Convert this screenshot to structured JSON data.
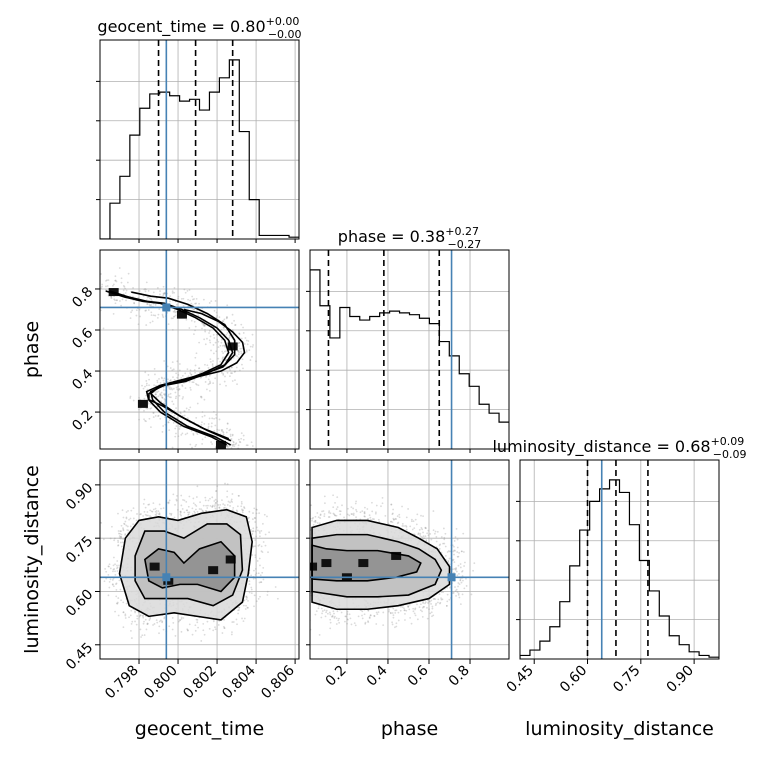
{
  "figure": {
    "type": "corner"
  },
  "truth_color": "#4682b4",
  "chart_data": {
    "type": "corner",
    "parameters": [
      {
        "name": "geocent_time",
        "xlabel": "geocent_time",
        "ylabel": "",
        "title": {
          "base": "geocent_time = 0.80",
          "sup": "+0.00",
          "sub": "−0.00"
        },
        "range": [
          0.796,
          0.8062
        ],
        "ticks": [
          0.798,
          0.8,
          0.802,
          0.804,
          0.806
        ],
        "tick_labels": [
          "0.798",
          "0.800",
          "0.802",
          "0.804",
          "0.806"
        ],
        "quantiles": [
          0.799,
          0.8009,
          0.8028
        ],
        "truth": 0.7994,
        "hist": {
          "edges": [
            0.796,
            0.79651,
            0.79702,
            0.79753,
            0.79804,
            0.79855,
            0.79906,
            0.79957,
            0.80008,
            0.80059,
            0.8011,
            0.80161,
            0.80212,
            0.80263,
            0.80314,
            0.80365,
            0.80416,
            0.80467,
            0.80518,
            0.80569,
            0.8062
          ],
          "counts": [
            0.0,
            0.2,
            0.35,
            0.58,
            0.73,
            0.81,
            0.82,
            0.8,
            0.77,
            0.78,
            0.72,
            0.82,
            0.9,
            1.0,
            0.6,
            0.22,
            0.02,
            0.02,
            0.02,
            0.01
          ]
        }
      },
      {
        "name": "phase",
        "xlabel": "phase",
        "ylabel": "phase",
        "title": {
          "base": "phase = 0.38",
          "sup": "+0.27",
          "sub": "−0.27"
        },
        "range": [
          0.02,
          0.99
        ],
        "ticks": [
          0.2,
          0.4,
          0.6,
          0.8
        ],
        "tick_labels": [
          "0.2",
          "0.4",
          "0.6",
          "0.8"
        ],
        "quantiles": [
          0.11,
          0.38,
          0.65
        ],
        "truth": 0.71,
        "hist": {
          "edges": [
            0.02,
            0.0685,
            0.117,
            0.1655,
            0.214,
            0.2625,
            0.311,
            0.3595,
            0.408,
            0.4565,
            0.505,
            0.5535,
            0.602,
            0.6505,
            0.699,
            0.7475,
            0.796,
            0.8445,
            0.893,
            0.9415,
            0.99
          ],
          "counts": [
            1.0,
            0.8,
            0.62,
            0.79,
            0.74,
            0.72,
            0.74,
            0.76,
            0.77,
            0.76,
            0.75,
            0.73,
            0.7,
            0.6,
            0.52,
            0.42,
            0.35,
            0.25,
            0.2,
            0.15
          ]
        }
      },
      {
        "name": "luminosity_distance",
        "xlabel": "luminosity_distance",
        "ylabel": "luminosity_distance",
        "title": {
          "base": "luminosity_distance = 0.68",
          "sup": "+0.09",
          "sub": "−0.09"
        },
        "range": [
          0.41,
          0.97
        ],
        "ticks": [
          0.45,
          0.6,
          0.75,
          0.9
        ],
        "tick_labels": [
          "0.45",
          "0.60",
          "0.75",
          "0.90"
        ],
        "quantiles": [
          0.6,
          0.68,
          0.77
        ],
        "truth": 0.64,
        "hist": {
          "edges": [
            0.41,
            0.438,
            0.466,
            0.494,
            0.522,
            0.55,
            0.578,
            0.606,
            0.634,
            0.662,
            0.69,
            0.718,
            0.746,
            0.774,
            0.802,
            0.83,
            0.858,
            0.886,
            0.914,
            0.942,
            0.97
          ],
          "counts": [
            0.02,
            0.05,
            0.1,
            0.18,
            0.32,
            0.52,
            0.72,
            0.88,
            0.95,
            1.0,
            0.93,
            0.75,
            0.55,
            0.38,
            0.24,
            0.13,
            0.08,
            0.04,
            0.02,
            0.01
          ]
        }
      }
    ],
    "pairs": [
      {
        "x": "geocent_time",
        "y": "phase",
        "contours": [
          [
            [
              0.7966,
              0.79
            ],
            [
              0.7976,
              0.76
            ],
            [
              0.7985,
              0.74
            ],
            [
              0.7994,
              0.73
            ],
            [
              0.8003,
              0.7
            ],
            [
              0.8012,
              0.66
            ],
            [
              0.8021,
              0.61
            ],
            [
              0.8027,
              0.55
            ],
            [
              0.8029,
              0.49
            ],
            [
              0.8025,
              0.43
            ],
            [
              0.8016,
              0.39
            ],
            [
              0.8005,
              0.35
            ],
            [
              0.7994,
              0.33
            ],
            [
              0.7987,
              0.3
            ],
            [
              0.7988,
              0.26
            ],
            [
              0.7994,
              0.2
            ],
            [
              0.8006,
              0.13
            ],
            [
              0.802,
              0.08
            ],
            [
              0.8028,
              0.04
            ]
          ],
          [
            [
              0.7966,
              0.79
            ],
            [
              0.7976,
              0.76
            ],
            [
              0.7985,
              0.74
            ],
            [
              0.7994,
              0.73
            ],
            [
              0.8003,
              0.7
            ],
            [
              0.8012,
              0.66
            ],
            [
              0.8021,
              0.61
            ],
            [
              0.8027,
              0.55
            ],
            [
              0.8029,
              0.49
            ],
            [
              0.8025,
              0.43
            ],
            [
              0.8016,
              0.39
            ],
            [
              0.8005,
              0.35
            ],
            [
              0.7994,
              0.33
            ],
            [
              0.7987,
              0.3
            ],
            [
              0.7988,
              0.26
            ],
            [
              0.7994,
              0.2
            ],
            [
              0.8006,
              0.13
            ],
            [
              0.802,
              0.08
            ],
            [
              0.8028,
              0.04
            ]
          ],
          [
            [
              0.7975,
              0.785
            ],
            [
              0.7985,
              0.765
            ],
            [
              0.7994,
              0.755
            ],
            [
              0.8004,
              0.725
            ],
            [
              0.8014,
              0.68
            ],
            [
              0.8023,
              0.625
            ],
            [
              0.8028,
              0.55
            ],
            [
              0.8028,
              0.48
            ],
            [
              0.8022,
              0.42
            ],
            [
              0.8012,
              0.385
            ],
            [
              0.8,
              0.355
            ],
            [
              0.799,
              0.33
            ],
            [
              0.7985,
              0.29
            ],
            [
              0.799,
              0.245
            ],
            [
              0.8,
              0.18
            ],
            [
              0.8012,
              0.12
            ],
            [
              0.8025,
              0.07
            ]
          ],
          [
            [
              0.8,
              0.7
            ],
            [
              0.8009,
              0.68
            ],
            [
              0.8018,
              0.64
            ],
            [
              0.8025,
              0.59
            ],
            [
              0.803,
              0.54
            ],
            [
              0.8031,
              0.49
            ],
            [
              0.8027,
              0.44
            ],
            [
              0.8019,
              0.4
            ],
            [
              0.8006,
              0.37
            ],
            [
              0.7996,
              0.35
            ],
            [
              0.7989,
              0.33
            ],
            [
              0.7982,
              0.29
            ],
            [
              0.7982,
              0.26
            ],
            [
              0.7989,
              0.23
            ],
            [
              0.8,
              0.17
            ],
            [
              0.8012,
              0.11
            ],
            [
              0.8024,
              0.06
            ]
          ]
        ],
        "dense_spots": [
          [
            0.8022,
            0.04
          ],
          [
            0.8028,
            0.52
          ],
          [
            0.7982,
            0.24
          ],
          [
            0.8002,
            0.675
          ],
          [
            0.7967,
            0.785
          ]
        ]
      },
      {
        "x": "geocent_time",
        "y": "luminosity_distance",
        "contours": [
          [
            [
              0.7973,
              0.75
            ],
            [
              0.798,
              0.8
            ],
            [
              0.799,
              0.81
            ],
            [
              0.8,
              0.8
            ],
            [
              0.8012,
              0.82
            ],
            [
              0.8025,
              0.83
            ],
            [
              0.8035,
              0.81
            ],
            [
              0.8038,
              0.74
            ],
            [
              0.8036,
              0.65
            ],
            [
              0.8033,
              0.57
            ],
            [
              0.8022,
              0.52
            ],
            [
              0.801,
              0.53
            ],
            [
              0.7998,
              0.54
            ],
            [
              0.7985,
              0.53
            ],
            [
              0.7975,
              0.56
            ],
            [
              0.797,
              0.65
            ]
          ],
          [
            [
              0.7978,
              0.7
            ],
            [
              0.7983,
              0.77
            ],
            [
              0.7993,
              0.77
            ],
            [
              0.8003,
              0.75
            ],
            [
              0.8015,
              0.79
            ],
            [
              0.8025,
              0.79
            ],
            [
              0.8032,
              0.76
            ],
            [
              0.8033,
              0.66
            ],
            [
              0.8028,
              0.59
            ],
            [
              0.8018,
              0.56
            ],
            [
              0.8005,
              0.58
            ],
            [
              0.7993,
              0.58
            ],
            [
              0.7983,
              0.58
            ],
            [
              0.7978,
              0.63
            ]
          ],
          [
            [
              0.7983,
              0.69
            ],
            [
              0.799,
              0.72
            ],
            [
              0.7998,
              0.71
            ],
            [
              0.8003,
              0.68
            ],
            [
              0.8011,
              0.72
            ],
            [
              0.8022,
              0.74
            ],
            [
              0.8029,
              0.7
            ],
            [
              0.8029,
              0.64
            ],
            [
              0.8022,
              0.6
            ],
            [
              0.801,
              0.62
            ],
            [
              0.8001,
              0.62
            ],
            [
              0.7992,
              0.61
            ],
            [
              0.7985,
              0.63
            ]
          ]
        ],
        "dense_spots": [
          [
            0.8027,
            0.69
          ],
          [
            0.7988,
            0.67
          ],
          [
            0.8018,
            0.66
          ],
          [
            0.7995,
            0.63
          ]
        ]
      },
      {
        "x": "phase",
        "y": "luminosity_distance",
        "contours": [
          [
            [
              0.03,
              0.78
            ],
            [
              0.15,
              0.8
            ],
            [
              0.3,
              0.8
            ],
            [
              0.45,
              0.78
            ],
            [
              0.55,
              0.75
            ],
            [
              0.64,
              0.72
            ],
            [
              0.7,
              0.67
            ],
            [
              0.7,
              0.62
            ],
            [
              0.6,
              0.58
            ],
            [
              0.45,
              0.56
            ],
            [
              0.3,
              0.55
            ],
            [
              0.15,
              0.55
            ],
            [
              0.03,
              0.57
            ]
          ],
          [
            [
              0.03,
              0.75
            ],
            [
              0.15,
              0.76
            ],
            [
              0.3,
              0.76
            ],
            [
              0.45,
              0.74
            ],
            [
              0.55,
              0.72
            ],
            [
              0.63,
              0.69
            ],
            [
              0.66,
              0.66
            ],
            [
              0.63,
              0.62
            ],
            [
              0.5,
              0.59
            ],
            [
              0.35,
              0.585
            ],
            [
              0.2,
              0.585
            ],
            [
              0.03,
              0.6
            ]
          ],
          [
            [
              0.03,
              0.73
            ],
            [
              0.1,
              0.72
            ],
            [
              0.2,
              0.715
            ],
            [
              0.35,
              0.715
            ],
            [
              0.5,
              0.7
            ],
            [
              0.56,
              0.68
            ],
            [
              0.54,
              0.655
            ],
            [
              0.44,
              0.64
            ],
            [
              0.3,
              0.63
            ],
            [
              0.15,
              0.63
            ],
            [
              0.03,
              0.635
            ]
          ]
        ],
        "dense_spots": [
          [
            0.03,
            0.67
          ],
          [
            0.1,
            0.68
          ],
          [
            0.28,
            0.68
          ],
          [
            0.44,
            0.7
          ],
          [
            0.2,
            0.64
          ]
        ]
      }
    ],
    "mock_samples": {
      "note_hidden": ""
    }
  }
}
